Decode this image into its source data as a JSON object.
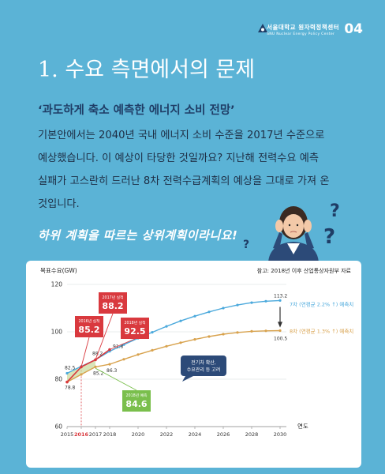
{
  "header": {
    "org_ko": "서울대학교 원자력정책센터",
    "org_en": "SNU Nuclear Energy Policy Center",
    "page_number": "04"
  },
  "title": "1. 수요 측면에서의 문제",
  "subtitle": "‘과도하게 축소 예측한 에너지 소비 전망’",
  "body_lines": [
    "기본안에서는 2040년 국내 에너지 소비 수준을 2017년 수준으로",
    "예상했습니다. 이 예상이 타당한 것일까요? 지난해 전력수요 예측",
    "실패가 고스란히 드러난 8차 전력수급계획의 예상을 그대로 가져 온",
    "것입니다."
  ],
  "handwriting": "하위 계획을 따르는 상위계획이라니요!",
  "colors": {
    "background": "#5BB3D6",
    "plan7": "#4BA9DC",
    "plan8": "#D8A24D",
    "actual": "#D9393E",
    "forecast_green": "#7ABF4C",
    "note_box": "#2C4A78"
  },
  "chart_data": {
    "type": "line",
    "ylabel": "목표수요(GW)",
    "xlabel": "연도",
    "source": "참고: 2018년 이후 산업통상자원부 자료",
    "ylim": [
      60,
      120
    ],
    "yticks": [
      60,
      80,
      100,
      120
    ],
    "xticks": [
      2015,
      2016,
      2017,
      2018,
      2020,
      2022,
      2024,
      2026,
      2028,
      2030
    ],
    "highlight_year": 2016,
    "series": [
      {
        "name": "7차 (연평균 2.2% ↑) 예측치",
        "color": "#4BA9DC",
        "x": [
          2015,
          2016,
          2017,
          2018,
          2019,
          2020,
          2021,
          2022,
          2023,
          2024,
          2025,
          2026,
          2027,
          2028,
          2029,
          2030
        ],
        "y": [
          82.5,
          85.4,
          88.2,
          91.8,
          94.6,
          97.3,
          99.8,
          102.3,
          104.6,
          106.6,
          108.4,
          110.0,
          111.3,
          112.3,
          112.9,
          113.2
        ]
      },
      {
        "name": "8차 (연평균 1.3% ↑) 예측치",
        "color": "#D8A24D",
        "x": [
          2015,
          2016,
          2017,
          2018,
          2019,
          2020,
          2021,
          2022,
          2023,
          2024,
          2025,
          2026,
          2027,
          2028,
          2029,
          2030
        ],
        "y": [
          78.8,
          82.0,
          85.2,
          86.3,
          88.4,
          90.4,
          92.2,
          93.9,
          95.4,
          96.8,
          98.0,
          99.0,
          99.7,
          100.2,
          100.4,
          100.5
        ]
      },
      {
        "name": "실적",
        "color": "#D9393E",
        "x": [
          2015,
          2016,
          2017,
          2018
        ],
        "y": [
          78.8,
          85.2,
          88.2,
          92.5
        ]
      }
    ],
    "point_labels": [
      {
        "x": 2015,
        "y": 82.5,
        "text": "82.5"
      },
      {
        "x": 2015,
        "y": 78.8,
        "text": "78.8"
      },
      {
        "x": 2017,
        "y": 88.2,
        "text": "88.2"
      },
      {
        "x": 2017,
        "y": 85.2,
        "text": "85.2"
      },
      {
        "x": 2018,
        "y": 91.8,
        "text": "91.8"
      },
      {
        "x": 2018,
        "y": 86.3,
        "text": "86.3"
      },
      {
        "x": 2030,
        "y": 113.2,
        "text": "113.2"
      },
      {
        "x": 2030,
        "y": 100.5,
        "text": "100.5"
      }
    ],
    "callouts": [
      {
        "label": "2016년 실적",
        "value": "85.2",
        "x": 2016,
        "y": 85.2,
        "color": "#D9393E"
      },
      {
        "label": "2017년 실적",
        "value": "88.2",
        "x": 2017,
        "y": 88.2,
        "color": "#D9393E"
      },
      {
        "label": "2018년 실적",
        "value": "92.5",
        "x": 2018,
        "y": 92.5,
        "color": "#D9393E"
      },
      {
        "label": "2018년 예측",
        "value": "84.6",
        "x": 2017,
        "y": 84.6,
        "color": "#7ABF4C"
      }
    ],
    "note_box": {
      "line1": "전기차 확산,",
      "line2": "수요관리 등 고려"
    }
  }
}
